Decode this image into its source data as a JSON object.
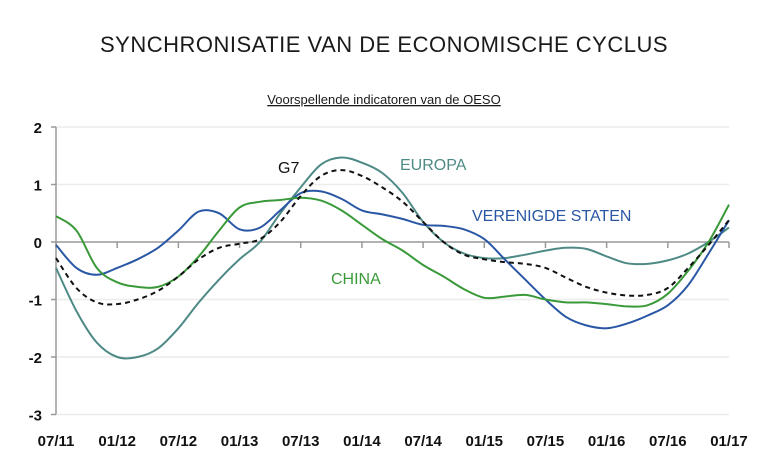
{
  "chart_data": {
    "type": "line",
    "title": "SYNCHRONISATIE VAN DE ECONOMISCHE CYCLUS",
    "subtitle": "Voorspellende indicatoren van de OESO",
    "xlabel": "",
    "ylabel": "",
    "ylim": [
      -3,
      2
    ],
    "yticks": [
      "2",
      "1",
      "0",
      "-1",
      "-2",
      "-3"
    ],
    "xticks": [
      "07/11",
      "01/12",
      "07/12",
      "01/13",
      "07/13",
      "01/14",
      "07/14",
      "01/15",
      "07/15",
      "01/16",
      "07/16",
      "01/17"
    ],
    "grid": true,
    "x": [
      "07/11",
      "09/11",
      "11/11",
      "01/12",
      "03/12",
      "05/12",
      "07/12",
      "09/12",
      "11/12",
      "01/13",
      "03/13",
      "05/13",
      "07/13",
      "09/13",
      "11/13",
      "01/14",
      "03/14",
      "05/14",
      "07/14",
      "09/14",
      "11/14",
      "01/15",
      "03/15",
      "05/15",
      "07/15",
      "09/15",
      "11/15",
      "01/16",
      "03/16",
      "05/16",
      "07/16",
      "09/16",
      "11/16",
      "01/17"
    ],
    "series": [
      {
        "name": "EUROPA",
        "color": "#4e8a85",
        "style": "solid",
        "values": [
          -0.45,
          -1.2,
          -1.75,
          -2.0,
          -2.0,
          -1.85,
          -1.5,
          -1.05,
          -0.65,
          -0.3,
          0.0,
          0.5,
          0.95,
          1.35,
          1.47,
          1.38,
          1.2,
          0.85,
          0.35,
          0.0,
          -0.2,
          -0.28,
          -0.28,
          -0.22,
          -0.15,
          -0.1,
          -0.12,
          -0.25,
          -0.37,
          -0.38,
          -0.32,
          -0.2,
          0.0,
          0.25
        ]
      },
      {
        "name": "VERENIGDE STATEN",
        "color": "#2a57a5",
        "style": "solid",
        "values": [
          -0.05,
          -0.45,
          -0.57,
          -0.45,
          -0.3,
          -0.1,
          0.2,
          0.53,
          0.5,
          0.22,
          0.25,
          0.55,
          0.85,
          0.88,
          0.75,
          0.55,
          0.48,
          0.4,
          0.3,
          0.28,
          0.22,
          0.05,
          -0.3,
          -0.65,
          -1.0,
          -1.3,
          -1.45,
          -1.5,
          -1.42,
          -1.28,
          -1.1,
          -0.75,
          -0.2,
          0.38
        ]
      },
      {
        "name": "CHINA",
        "color": "#3a9a3a",
        "style": "solid",
        "values": [
          0.45,
          0.2,
          -0.45,
          -0.7,
          -0.78,
          -0.78,
          -0.6,
          -0.25,
          0.2,
          0.6,
          0.7,
          0.73,
          0.77,
          0.72,
          0.55,
          0.3,
          0.05,
          -0.15,
          -0.4,
          -0.6,
          -0.82,
          -0.97,
          -0.95,
          -0.92,
          -1.0,
          -1.05,
          -1.05,
          -1.08,
          -1.12,
          -1.1,
          -0.9,
          -0.5,
          0.0,
          0.65
        ]
      },
      {
        "name": "G7",
        "color": "#111111",
        "style": "dashed",
        "values": [
          -0.28,
          -0.8,
          -1.05,
          -1.08,
          -1.0,
          -0.85,
          -0.6,
          -0.3,
          -0.1,
          -0.03,
          0.05,
          0.35,
          0.8,
          1.15,
          1.25,
          1.15,
          0.95,
          0.7,
          0.35,
          0.0,
          -0.22,
          -0.3,
          -0.35,
          -0.38,
          -0.45,
          -0.62,
          -0.78,
          -0.88,
          -0.93,
          -0.92,
          -0.8,
          -0.45,
          -0.05,
          0.38
        ]
      }
    ]
  }
}
